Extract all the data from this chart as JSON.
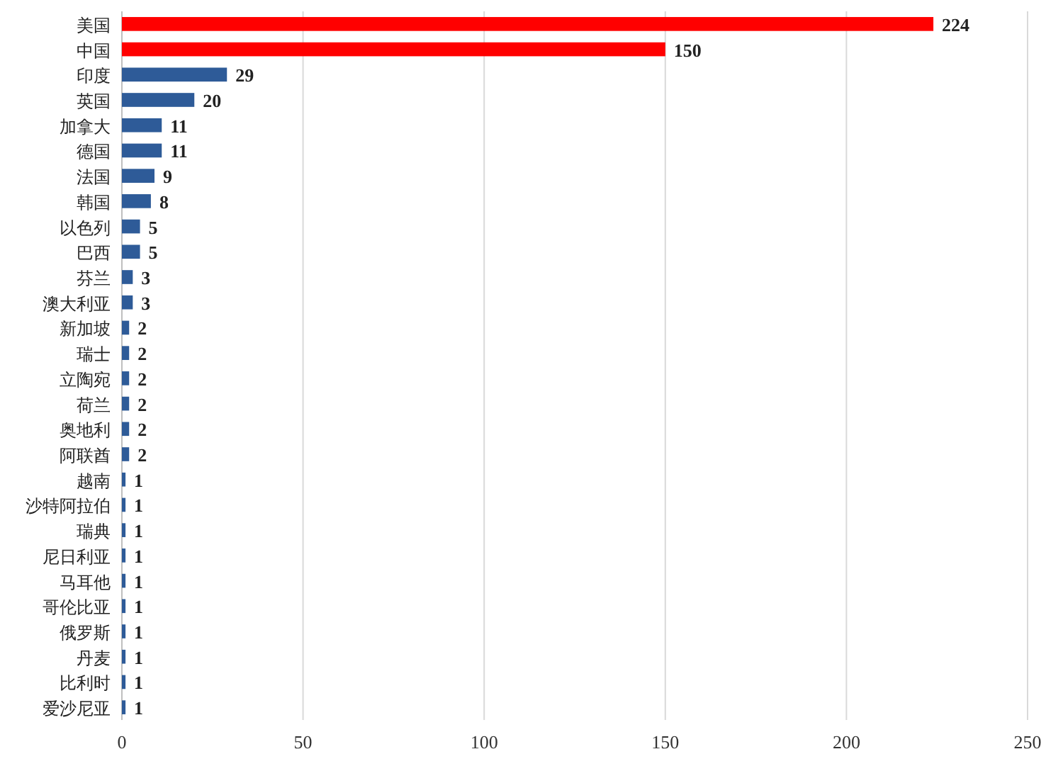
{
  "chart_data": {
    "type": "bar",
    "orientation": "horizontal",
    "categories": [
      "美国",
      "中国",
      "印度",
      "英国",
      "加拿大",
      "德国",
      "法国",
      "韩国",
      "以色列",
      "巴西",
      "芬兰",
      "澳大利亚",
      "新加坡",
      "瑞士",
      "立陶宛",
      "荷兰",
      "奥地利",
      "阿联酋",
      "越南",
      "沙特阿拉伯",
      "瑞典",
      "尼日利亚",
      "马耳他",
      "哥伦比亚",
      "俄罗斯",
      "丹麦",
      "比利时",
      "爱沙尼亚"
    ],
    "values": [
      224,
      150,
      29,
      20,
      11,
      11,
      9,
      8,
      5,
      5,
      3,
      3,
      2,
      2,
      2,
      2,
      2,
      2,
      1,
      1,
      1,
      1,
      1,
      1,
      1,
      1,
      1,
      1
    ],
    "colors": [
      "#ff0000",
      "#ff0000",
      "#2e5b98",
      "#2e5b98",
      "#2e5b98",
      "#2e5b98",
      "#2e5b98",
      "#2e5b98",
      "#2e5b98",
      "#2e5b98",
      "#2e5b98",
      "#2e5b98",
      "#2e5b98",
      "#2e5b98",
      "#2e5b98",
      "#2e5b98",
      "#2e5b98",
      "#2e5b98",
      "#2e5b98",
      "#2e5b98",
      "#2e5b98",
      "#2e5b98",
      "#2e5b98",
      "#2e5b98",
      "#2e5b98",
      "#2e5b98",
      "#2e5b98",
      "#2e5b98"
    ],
    "xlim": [
      0,
      250
    ],
    "xticks": [
      0,
      50,
      100,
      150,
      200,
      250
    ],
    "grid": "x",
    "data_labels": true
  }
}
